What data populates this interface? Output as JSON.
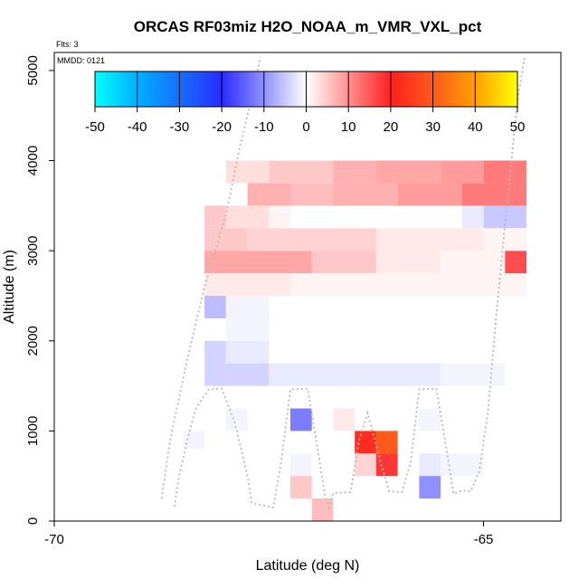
{
  "chart_data": {
    "type": "heatmap",
    "title": "ORCAS RF03miz H2O_NOAA_m_VMR_VXL_pct",
    "flights_note": "Flts: 3",
    "date_note": "MMDD: 0121",
    "xlabel": "Latitude (deg N)",
    "ylabel": "Altitude (m)",
    "xlim": [
      -70,
      -64.1
    ],
    "ylim": [
      0,
      5200
    ],
    "xticks": [
      -70,
      -65
    ],
    "yticks": [
      0,
      1000,
      2000,
      3000,
      4000,
      5000
    ],
    "colorbar": {
      "min": -50,
      "max": 50,
      "ticks": [
        -50,
        -40,
        -30,
        -20,
        -10,
        0,
        10,
        20,
        30,
        40,
        50
      ]
    },
    "cells": [
      {
        "lat": [
          -68.5,
          -68.25
        ],
        "alt": [
          800,
          1000
        ],
        "value": -1
      },
      {
        "lat": [
          -68.25,
          -68.0
        ],
        "alt": [
          1500,
          2000
        ],
        "value": -4
      },
      {
        "lat": [
          -68.0,
          -67.5
        ],
        "alt": [
          1500,
          1750
        ],
        "value": -4
      },
      {
        "lat": [
          -67.5,
          -66.5
        ],
        "alt": [
          1500,
          1750
        ],
        "value": -2
      },
      {
        "lat": [
          -66.5,
          -65.5
        ],
        "alt": [
          1500,
          1750
        ],
        "value": -2
      },
      {
        "lat": [
          -65.5,
          -64.75
        ],
        "alt": [
          1500,
          1750
        ],
        "value": -1
      },
      {
        "lat": [
          -68.0,
          -67.5
        ],
        "alt": [
          1750,
          2000
        ],
        "value": -2
      },
      {
        "lat": [
          -68.25,
          -68.0
        ],
        "alt": [
          2250,
          2500
        ],
        "value": -6
      },
      {
        "lat": [
          -68.0,
          -67.5
        ],
        "alt": [
          2000,
          2500
        ],
        "value": -1
      },
      {
        "lat": [
          -68.25,
          -67.25
        ],
        "alt": [
          2500,
          2750
        ],
        "value": 2
      },
      {
        "lat": [
          -67.25,
          -64.5
        ],
        "alt": [
          2500,
          2750
        ],
        "value": 1
      },
      {
        "lat": [
          -68.25,
          -67.0
        ],
        "alt": [
          2750,
          3000
        ],
        "value": 8
      },
      {
        "lat": [
          -67.0,
          -66.25
        ],
        "alt": [
          2750,
          3000
        ],
        "value": 5
      },
      {
        "lat": [
          -66.25,
          -65.5
        ],
        "alt": [
          2750,
          3000
        ],
        "value": 2
      },
      {
        "lat": [
          -65.5,
          -64.75
        ],
        "alt": [
          2750,
          3000
        ],
        "value": 1
      },
      {
        "lat": [
          -64.75,
          -64.5
        ],
        "alt": [
          2750,
          3000
        ],
        "value": 16
      },
      {
        "lat": [
          -68.25,
          -67.75
        ],
        "alt": [
          3000,
          3250
        ],
        "value": 5
      },
      {
        "lat": [
          -67.75,
          -66.25
        ],
        "alt": [
          3000,
          3250
        ],
        "value": 4
      },
      {
        "lat": [
          -66.25,
          -65.0
        ],
        "alt": [
          3000,
          3250
        ],
        "value": 2
      },
      {
        "lat": [
          -65.0,
          -64.5
        ],
        "alt": [
          3000,
          3250
        ],
        "value": 1
      },
      {
        "lat": [
          -68.25,
          -68.0
        ],
        "alt": [
          3250,
          3500
        ],
        "value": 5
      },
      {
        "lat": [
          -68.0,
          -67.5
        ],
        "alt": [
          3250,
          3500
        ],
        "value": 3
      },
      {
        "lat": [
          -67.5,
          -67.25
        ],
        "alt": [
          3250,
          3500
        ],
        "value": 1
      },
      {
        "lat": [
          -65.25,
          -65.0
        ],
        "alt": [
          3250,
          3500
        ],
        "value": -2
      },
      {
        "lat": [
          -65.0,
          -64.5
        ],
        "alt": [
          3250,
          3500
        ],
        "value": -5
      },
      {
        "lat": [
          -67.75,
          -67.25
        ],
        "alt": [
          3500,
          3750
        ],
        "value": 7
      },
      {
        "lat": [
          -67.25,
          -66.75
        ],
        "alt": [
          3500,
          3750
        ],
        "value": 6
      },
      {
        "lat": [
          -66.75,
          -66.0
        ],
        "alt": [
          3500,
          3750
        ],
        "value": 7
      },
      {
        "lat": [
          -66.0,
          -65.25
        ],
        "alt": [
          3500,
          3750
        ],
        "value": 9
      },
      {
        "lat": [
          -65.25,
          -64.5
        ],
        "alt": [
          3500,
          3750
        ],
        "value": 12
      },
      {
        "lat": [
          -68.0,
          -67.5
        ],
        "alt": [
          3750,
          4000
        ],
        "value": 3
      },
      {
        "lat": [
          -67.5,
          -66.75
        ],
        "alt": [
          3750,
          4000
        ],
        "value": 5
      },
      {
        "lat": [
          -66.75,
          -66.25
        ],
        "alt": [
          3750,
          4000
        ],
        "value": 7
      },
      {
        "lat": [
          -66.25,
          -65.5
        ],
        "alt": [
          3750,
          4000
        ],
        "value": 8
      },
      {
        "lat": [
          -65.5,
          -65.0
        ],
        "alt": [
          3750,
          4000
        ],
        "value": 9
      },
      {
        "lat": [
          -65.0,
          -64.5
        ],
        "alt": [
          3750,
          4000
        ],
        "value": 12
      },
      {
        "lat": [
          -68.0,
          -67.75
        ],
        "alt": [
          1000,
          1250
        ],
        "value": -1
      },
      {
        "lat": [
          -67.25,
          -67.0
        ],
        "alt": [
          1000,
          1250
        ],
        "value": -12
      },
      {
        "lat": [
          -66.75,
          -66.5
        ],
        "alt": [
          1000,
          1250
        ],
        "value": 2
      },
      {
        "lat": [
          -65.75,
          -65.5
        ],
        "alt": [
          1000,
          1250
        ],
        "value": -1
      },
      {
        "lat": [
          -67.25,
          -67.0
        ],
        "alt": [
          500,
          750
        ],
        "value": -1
      },
      {
        "lat": [
          -66.5,
          -66.25
        ],
        "alt": [
          750,
          1000
        ],
        "value": 22
      },
      {
        "lat": [
          -66.25,
          -66.0
        ],
        "alt": [
          750,
          1000
        ],
        "value": 30
      },
      {
        "lat": [
          -66.5,
          -66.25
        ],
        "alt": [
          500,
          750
        ],
        "value": 4
      },
      {
        "lat": [
          -66.25,
          -66.0
        ],
        "alt": [
          500,
          750
        ],
        "value": 18
      },
      {
        "lat": [
          -65.75,
          -65.5
        ],
        "alt": [
          500,
          750
        ],
        "value": -2
      },
      {
        "lat": [
          -65.5,
          -65.0
        ],
        "alt": [
          500,
          750
        ],
        "value": -1
      },
      {
        "lat": [
          -67.25,
          -67.0
        ],
        "alt": [
          250,
          500
        ],
        "value": 5
      },
      {
        "lat": [
          -65.75,
          -65.5
        ],
        "alt": [
          250,
          500
        ],
        "value": -10
      },
      {
        "lat": [
          -67.0,
          -66.75
        ],
        "alt": [
          0,
          250
        ],
        "value": 6
      }
    ],
    "flight_track": [
      [
        -68.6,
        160
      ],
      [
        -68.58,
        300
      ],
      [
        -68.55,
        480
      ],
      [
        -68.45,
        900
      ],
      [
        -68.35,
        1250
      ],
      [
        -68.2,
        1460
      ],
      [
        -68.05,
        1470
      ],
      [
        -67.9,
        1100
      ],
      [
        -67.75,
        500
      ],
      [
        -67.7,
        200
      ],
      [
        -67.5,
        160
      ],
      [
        -67.45,
        150
      ],
      [
        -67.35,
        700
      ],
      [
        -67.25,
        1460
      ],
      [
        -67.05,
        1470
      ],
      [
        -66.95,
        900
      ],
      [
        -66.85,
        300
      ],
      [
        -66.8,
        150
      ],
      [
        -66.75,
        310
      ],
      [
        -66.55,
        320
      ],
      [
        -66.45,
        900
      ],
      [
        -66.35,
        1200
      ],
      [
        -66.2,
        650
      ],
      [
        -66.1,
        330
      ],
      [
        -65.95,
        320
      ],
      [
        -65.85,
        650
      ],
      [
        -65.75,
        1460
      ],
      [
        -65.55,
        1470
      ],
      [
        -65.45,
        900
      ],
      [
        -65.35,
        300
      ],
      [
        -65.25,
        340
      ],
      [
        -65.15,
        330
      ],
      [
        -65.05,
        550
      ],
      [
        -64.95,
        1200
      ],
      [
        -64.85,
        2300
      ],
      [
        -64.75,
        3300
      ],
      [
        -64.6,
        4700
      ],
      [
        -64.52,
        5150
      ]
    ],
    "flight_track_2": [
      [
        -68.75,
        250
      ],
      [
        -68.65,
        900
      ],
      [
        -68.45,
        1800
      ],
      [
        -68.25,
        2600
      ],
      [
        -68.0,
        3400
      ],
      [
        -67.85,
        4100
      ],
      [
        -67.7,
        4700
      ],
      [
        -67.6,
        5150
      ]
    ]
  }
}
